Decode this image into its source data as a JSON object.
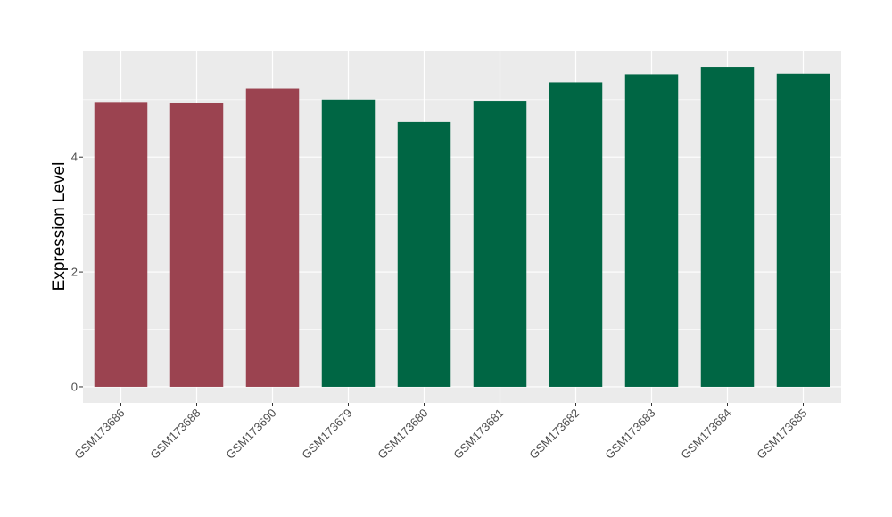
{
  "chart_data": {
    "type": "bar",
    "title": "",
    "xlabel": "",
    "ylabel": "Expression Level",
    "categories": [
      "GSM173686",
      "GSM173688",
      "GSM173690",
      "GSM173679",
      "GSM173680",
      "GSM173681",
      "GSM173682",
      "GSM173683",
      "GSM173684",
      "GSM173685"
    ],
    "values": [
      4.96,
      4.95,
      5.19,
      5.0,
      4.61,
      4.98,
      5.3,
      5.44,
      5.57,
      5.45
    ],
    "bar_colors": [
      "#9b4350",
      "#9b4350",
      "#9b4350",
      "#006644",
      "#006644",
      "#006644",
      "#006644",
      "#006644",
      "#006644",
      "#006644"
    ],
    "y_ticks": [
      0,
      2,
      4
    ],
    "ylim": [
      -0.28,
      5.85
    ],
    "grid": true,
    "panel_background": "#ebebeb",
    "legend": "none"
  }
}
